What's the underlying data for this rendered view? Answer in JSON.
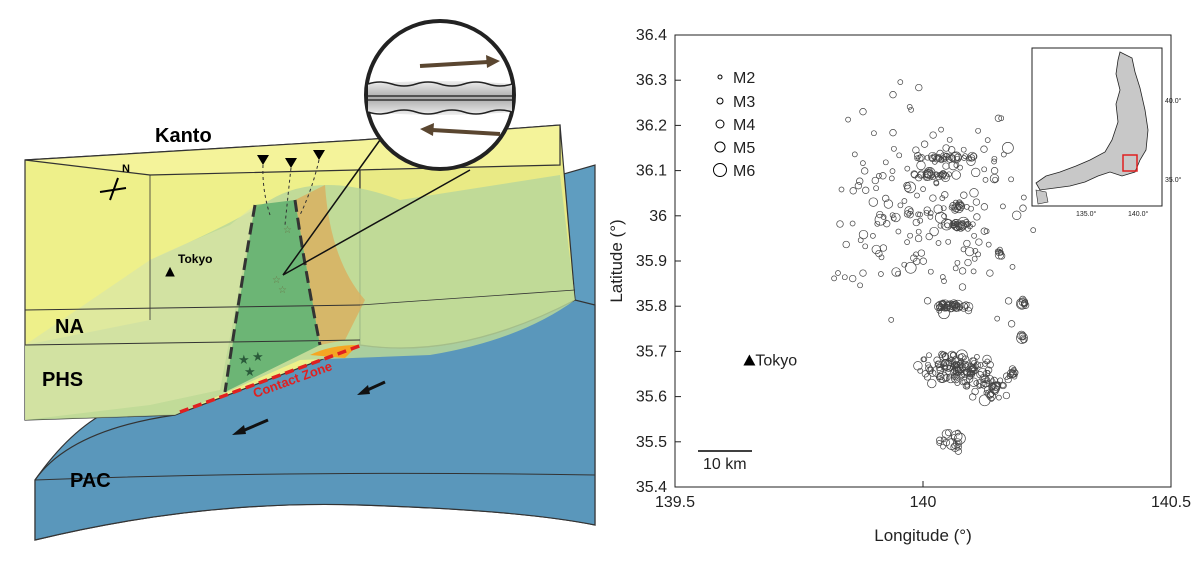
{
  "diagram": {
    "labels": {
      "kanto": "Kanto",
      "tokyo": "Tokyo",
      "na": "NA",
      "phs": "PHS",
      "pac": "PAC",
      "contact_zone": "Contact Zone",
      "north": "N"
    },
    "colors": {
      "na_plate": "#f4f39a",
      "phs_plate": "#b9d79a",
      "pac_plate": "#5f9dc0",
      "contact_zone": "#e02020",
      "orange_patch": "#f5a623",
      "green_zone": "#4fa86a",
      "orange_zone": "#d9b060"
    }
  },
  "chart_data": {
    "type": "scatter",
    "xlabel": "Longitude (°)",
    "ylabel": "Latitude (°)",
    "xlim": [
      139.5,
      140.5
    ],
    "ylim": [
      35.4,
      36.4
    ],
    "x_ticks": [
      "139.5",
      "140",
      "140.5"
    ],
    "y_ticks": [
      "35.4",
      "35.5",
      "35.6",
      "35.7",
      "35.8",
      "35.9",
      "36",
      "36.1",
      "36.2",
      "36.3",
      "36.4"
    ],
    "legend": {
      "placement": "top-left",
      "entries": [
        "M2",
        "M3",
        "M4",
        "M5",
        "M6"
      ]
    },
    "marker": "open circle, size by magnitude",
    "annotations": {
      "tokyo_label": "Tokyo",
      "tokyo_point": [
        139.65,
        35.68
      ],
      "scale_bar": "10 km"
    },
    "inset": {
      "description_visible": "map of Japan with red box",
      "x_ticks": [
        "135.0°",
        "140.0°"
      ],
      "y_ticks": [
        "40.0°",
        "35.0°"
      ]
    },
    "clusters": [
      {
        "lon": 140.07,
        "lat": 35.66,
        "lon_spread": 0.09,
        "lat_spread": 0.05,
        "count": 120
      },
      {
        "lon": 140.13,
        "lat": 35.63,
        "lon_spread": 0.05,
        "lat_spread": 0.05,
        "count": 40
      },
      {
        "lon": 140.06,
        "lat": 35.8,
        "lon_spread": 0.05,
        "lat_spread": 0.012,
        "count": 40
      },
      {
        "lon": 140.07,
        "lat": 35.98,
        "lon_spread": 0.04,
        "lat_spread": 0.012,
        "count": 28
      },
      {
        "lon": 140.07,
        "lat": 36.02,
        "lon_spread": 0.02,
        "lat_spread": 0.012,
        "count": 14
      },
      {
        "lon": 140.02,
        "lat": 36.09,
        "lon_spread": 0.06,
        "lat_spread": 0.01,
        "count": 25
      },
      {
        "lon": 140.04,
        "lat": 36.13,
        "lon_spread": 0.1,
        "lat_spread": 0.015,
        "count": 34
      },
      {
        "lon": 140.2,
        "lat": 35.81,
        "lon_spread": 0.01,
        "lat_spread": 0.01,
        "count": 8
      },
      {
        "lon": 140.2,
        "lat": 35.73,
        "lon_spread": 0.01,
        "lat_spread": 0.01,
        "count": 6
      },
      {
        "lon": 140.18,
        "lat": 35.65,
        "lon_spread": 0.02,
        "lat_spread": 0.02,
        "count": 12
      },
      {
        "lon": 140.15,
        "lat": 35.92,
        "lon_spread": 0.01,
        "lat_spread": 0.01,
        "count": 6
      },
      {
        "lon": 140.05,
        "lat": 35.5,
        "lon_spread": 0.04,
        "lat_spread": 0.04,
        "count": 18
      },
      {
        "lon": 140.0,
        "lat": 36.0,
        "lon_spread": 0.3,
        "lat_spread": 0.35,
        "count": 180
      }
    ]
  }
}
